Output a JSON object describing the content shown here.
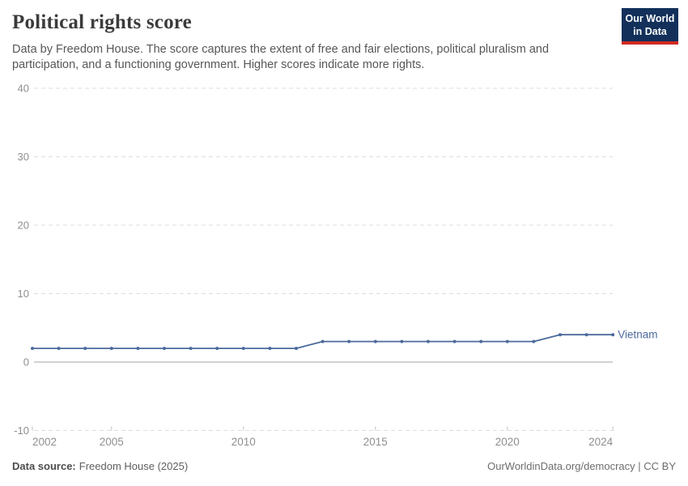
{
  "header": {
    "title": "Political rights score",
    "subtitle": "Data by Freedom House. The score captures the extent of free and fair elections, political pluralism and participation, and a functioning government. Higher scores indicate more rights.",
    "logo_line1": "Our World",
    "logo_line2": "in Data",
    "logo_bg_color": "#12305a",
    "logo_bar_color": "#d02b21"
  },
  "footer": {
    "source_label": "Data source:",
    "source_value": "Freedom House (2025)",
    "right_text": "OurWorldinData.org/democracy | CC BY"
  },
  "chart_data": {
    "type": "line",
    "title": "Political rights score",
    "xlabel": "",
    "ylabel": "",
    "xlim": [
      2002,
      2024
    ],
    "ylim": [
      -10,
      40
    ],
    "x_ticks": [
      2002,
      2005,
      2010,
      2015,
      2020,
      2024
    ],
    "y_ticks": [
      -10,
      0,
      10,
      20,
      30,
      40
    ],
    "grid": "horizontal-dashed",
    "zero_line": "solid",
    "legend_position": "end-of-line-label",
    "series": [
      {
        "name": "Vietnam",
        "color": "#4C6A9C",
        "points": [
          [
            2002,
            2
          ],
          [
            2003,
            2
          ],
          [
            2004,
            2
          ],
          [
            2005,
            2
          ],
          [
            2006,
            2
          ],
          [
            2007,
            2
          ],
          [
            2008,
            2
          ],
          [
            2009,
            2
          ],
          [
            2010,
            2
          ],
          [
            2011,
            2
          ],
          [
            2012,
            2
          ],
          [
            2013,
            3
          ],
          [
            2014,
            3
          ],
          [
            2015,
            3
          ],
          [
            2016,
            3
          ],
          [
            2017,
            3
          ],
          [
            2018,
            3
          ],
          [
            2019,
            3
          ],
          [
            2020,
            3
          ],
          [
            2021,
            3
          ],
          [
            2022,
            4
          ],
          [
            2023,
            4
          ],
          [
            2024,
            4
          ]
        ]
      }
    ],
    "colors": {
      "gridline": "#dedede",
      "zero_line": "#a3a3a3",
      "tick": "#c2c2c2",
      "axis_label": "#8f8f8f"
    }
  }
}
